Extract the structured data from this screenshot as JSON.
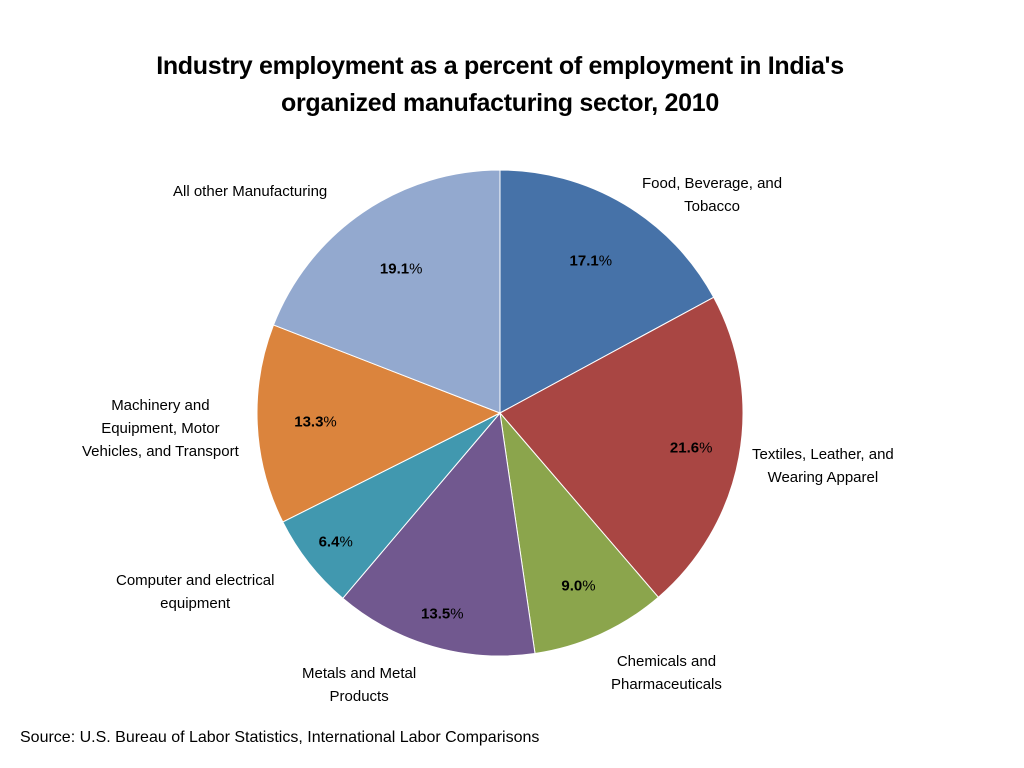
{
  "chart_data": {
    "type": "pie",
    "title": "Industry employment as a percent of employment in India's organized manufacturing sector, 2010",
    "title_lines": [
      "Industry employment as a percent of employment in India's",
      "organized manufacturing sector, 2010"
    ],
    "unit": "%",
    "start_angle": "12 o'clock, clockwise",
    "slices": [
      {
        "name": "Food, Beverage, and Tobacco",
        "label_lines": [
          "Food, Beverage, and",
          "Tobacco"
        ],
        "value": 17.1,
        "value_text": "17.1",
        "color": "#4672A8"
      },
      {
        "name": "Textiles, Leather, and Wearing Apparel",
        "label_lines": [
          "Textiles, Leather, and",
          "Wearing Apparel"
        ],
        "value": 21.6,
        "value_text": "21.6",
        "color": "#A94643"
      },
      {
        "name": "Chemicals and Pharmaceuticals",
        "label_lines": [
          "Chemicals and",
          "Pharmaceuticals"
        ],
        "value": 9.0,
        "value_text": "9.0",
        "color": "#8BA54C"
      },
      {
        "name": "Metals and Metal Products",
        "label_lines": [
          "Metals and Metal",
          "Products"
        ],
        "value": 13.5,
        "value_text": "13.5",
        "color": "#71588F"
      },
      {
        "name": "Computer and electrical equipment",
        "label_lines": [
          "Computer and electrical",
          "equipment"
        ],
        "value": 6.4,
        "value_text": "6.4",
        "color": "#4198AF"
      },
      {
        "name": "Machinery and Equipment, Motor Vehicles, and Transport",
        "label_lines": [
          "Machinery and",
          "Equipment, Motor",
          "Vehicles, and Transport"
        ],
        "value": 13.3,
        "value_text": "13.3",
        "color": "#DB843D"
      },
      {
        "name": "All other Manufacturing",
        "label_lines": [
          "All other Manufacturing"
        ],
        "value": 19.1,
        "value_text": "19.1",
        "color": "#93A9CF"
      }
    ],
    "legend": "none (labels beside slices)"
  },
  "source": "Source: U.S. Bureau of Labor Statistics, International Labor Comparisons"
}
